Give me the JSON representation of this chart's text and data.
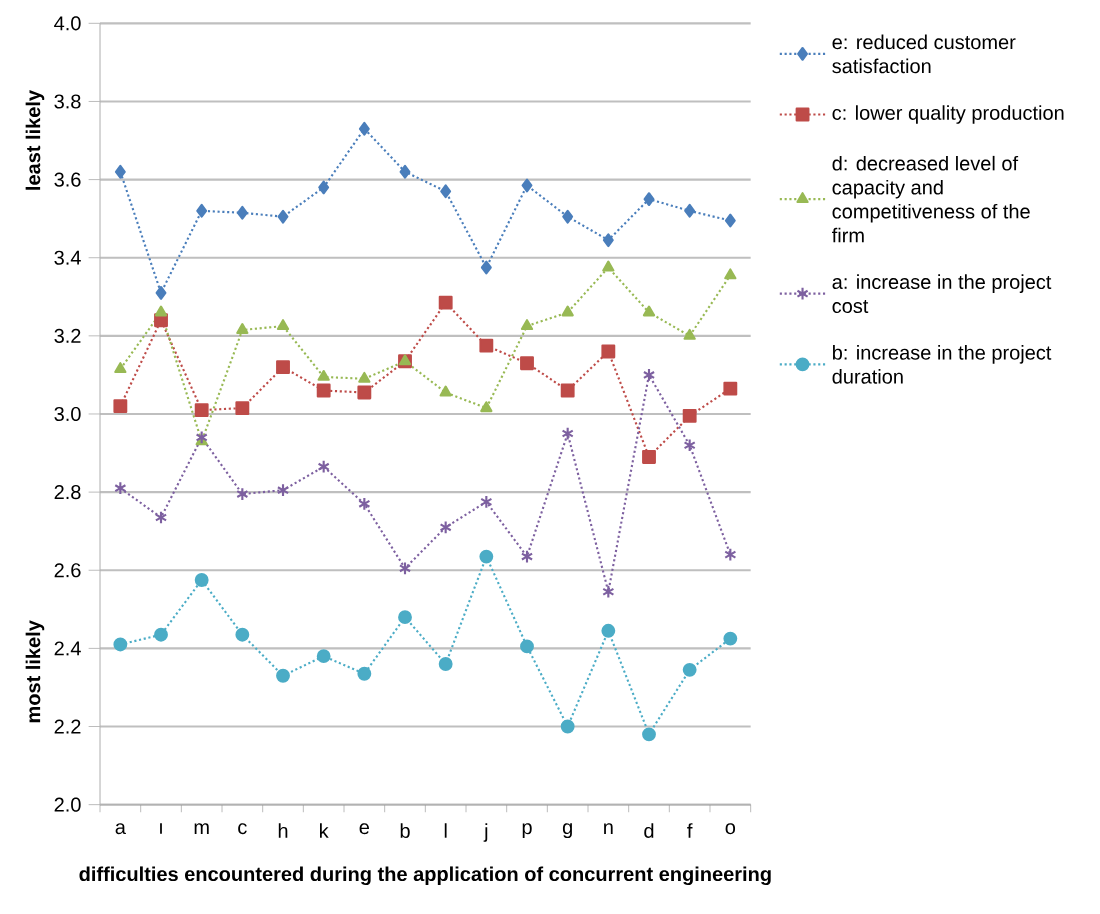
{
  "chart_data": {
    "type": "line",
    "xlabel": "difficulties encountered during the application of concurrent engineering",
    "categories": [
      "a",
      "ı",
      "m",
      "c",
      "h",
      "k",
      "e",
      "b",
      "l",
      "j",
      "p",
      "g",
      "n",
      "d",
      "f",
      "o"
    ],
    "series": [
      {
        "name": "e: reduced customer satisfaction",
        "color": "#4a7ebb",
        "marker": "diamond",
        "values": [
          3.62,
          3.31,
          3.52,
          3.515,
          3.505,
          3.58,
          3.73,
          3.62,
          3.57,
          3.375,
          3.585,
          3.505,
          3.445,
          3.55,
          3.52,
          3.495
        ]
      },
      {
        "name": "c: lower quality production",
        "color": "#be4b48",
        "marker": "square",
        "values": [
          3.02,
          3.24,
          3.01,
          3.015,
          3.12,
          3.06,
          3.055,
          3.135,
          3.285,
          3.175,
          3.13,
          3.06,
          3.16,
          2.89,
          2.995,
          3.065
        ]
      },
      {
        "name": "d: decreased level of capacity and competitiveness of the firm",
        "color": "#98b954",
        "marker": "triangle",
        "values": [
          3.115,
          3.26,
          2.93,
          3.215,
          3.225,
          3.095,
          3.09,
          3.135,
          3.055,
          3.015,
          3.225,
          3.26,
          3.375,
          3.26,
          3.2,
          3.355
        ]
      },
      {
        "name": "a: increase in the project cost",
        "color": "#7d60a0",
        "marker": "cross",
        "values": [
          2.81,
          2.735,
          2.94,
          2.795,
          2.805,
          2.865,
          2.77,
          2.605,
          2.71,
          2.775,
          2.635,
          2.95,
          2.545,
          3.1,
          2.92,
          2.64
        ]
      },
      {
        "name": "b: increase in the project duration",
        "color": "#4bacc6",
        "marker": "circle",
        "values": [
          2.41,
          2.435,
          2.575,
          2.435,
          2.33,
          2.38,
          2.335,
          2.48,
          2.36,
          2.635,
          2.405,
          2.2,
          2.445,
          2.18,
          2.345,
          2.425
        ]
      }
    ],
    "ylim": [
      2.0,
      4.0
    ],
    "yticks": [
      {
        "value": 2.0,
        "label": "2.0"
      },
      {
        "value": 2.2,
        "label": "2.2"
      },
      {
        "value": 2.4,
        "label": "2.4"
      },
      {
        "value": 2.6,
        "label": "2.6"
      },
      {
        "value": 2.8,
        "label": "2.8"
      },
      {
        "value": 3.0,
        "label": "3.0"
      },
      {
        "value": 3.2,
        "label": "3.2"
      },
      {
        "value": 3.4,
        "label": "3.4"
      },
      {
        "value": 3.6,
        "label": "3.6"
      },
      {
        "value": 3.8,
        "label": "3.8"
      },
      {
        "value": 4.0,
        "label": "4.0"
      }
    ],
    "annotations": [
      "least likely",
      "most likely"
    ],
    "grid": "y",
    "legend": "right",
    "line_style": "dotted"
  }
}
